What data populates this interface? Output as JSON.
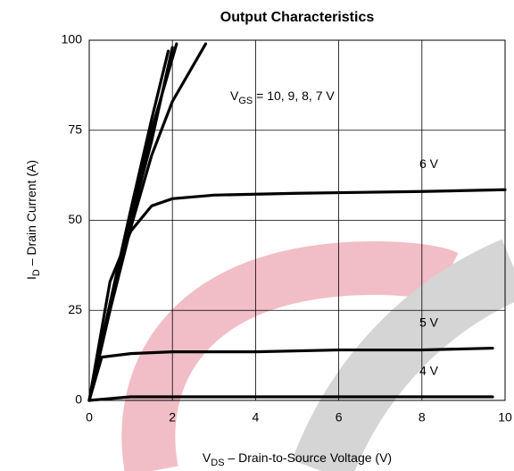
{
  "chart_data": {
    "type": "line",
    "title": "Output Characteristics",
    "x_label": {
      "main": "V",
      "sub": "DS",
      "rest": "  –  Drain-to-Source Voltage (V)"
    },
    "y_label": {
      "main": "I",
      "sub": "D",
      "rest": "  –  Drain Current (A)"
    },
    "annotation": {
      "main": "V",
      "sub": "GS",
      "rest": " = 10, 9, 8, 7 V"
    },
    "xlim": [
      0,
      10
    ],
    "ylim": [
      0,
      100
    ],
    "xticks": [
      0,
      2,
      4,
      6,
      8,
      10
    ],
    "yticks": [
      0,
      25,
      50,
      75,
      100
    ],
    "grid": true,
    "series": [
      {
        "color": "#000000",
        "x": [
          0,
          0.5,
          1,
          1.5,
          1.9
        ],
        "values": [
          0,
          27,
          53,
          78,
          97
        ]
      },
      {
        "color": "#000000",
        "x": [
          0,
          0.5,
          1,
          1.5,
          2.1
        ],
        "values": [
          0,
          26,
          51,
          75,
          99
        ]
      },
      {
        "color": "#000000",
        "x": [
          0,
          0.5,
          1,
          1.5,
          2.0
        ],
        "values": [
          0,
          26,
          50,
          72,
          98
        ]
      },
      {
        "color": "#000000",
        "x": [
          0,
          0.5,
          1,
          1.5,
          2,
          2.8
        ],
        "values": [
          0,
          25,
          48,
          68,
          83,
          99
        ]
      },
      {
        "name": "6 V",
        "color": "#000000",
        "x": [
          0,
          0.5,
          1,
          1.5,
          2,
          3,
          5,
          8,
          10
        ],
        "values": [
          0,
          33,
          47,
          54,
          56,
          57,
          57.5,
          58,
          58.5
        ]
      },
      {
        "name": "5 V",
        "color": "#000000",
        "x": [
          0,
          0.3,
          1,
          2,
          4,
          6,
          8,
          9.7
        ],
        "values": [
          0,
          12,
          13,
          13.5,
          13.5,
          14,
          14,
          14.5
        ]
      },
      {
        "name": "4 V",
        "color": "#000000",
        "x": [
          0,
          1,
          4,
          9.7
        ],
        "values": [
          0,
          1,
          1,
          1
        ]
      }
    ]
  }
}
